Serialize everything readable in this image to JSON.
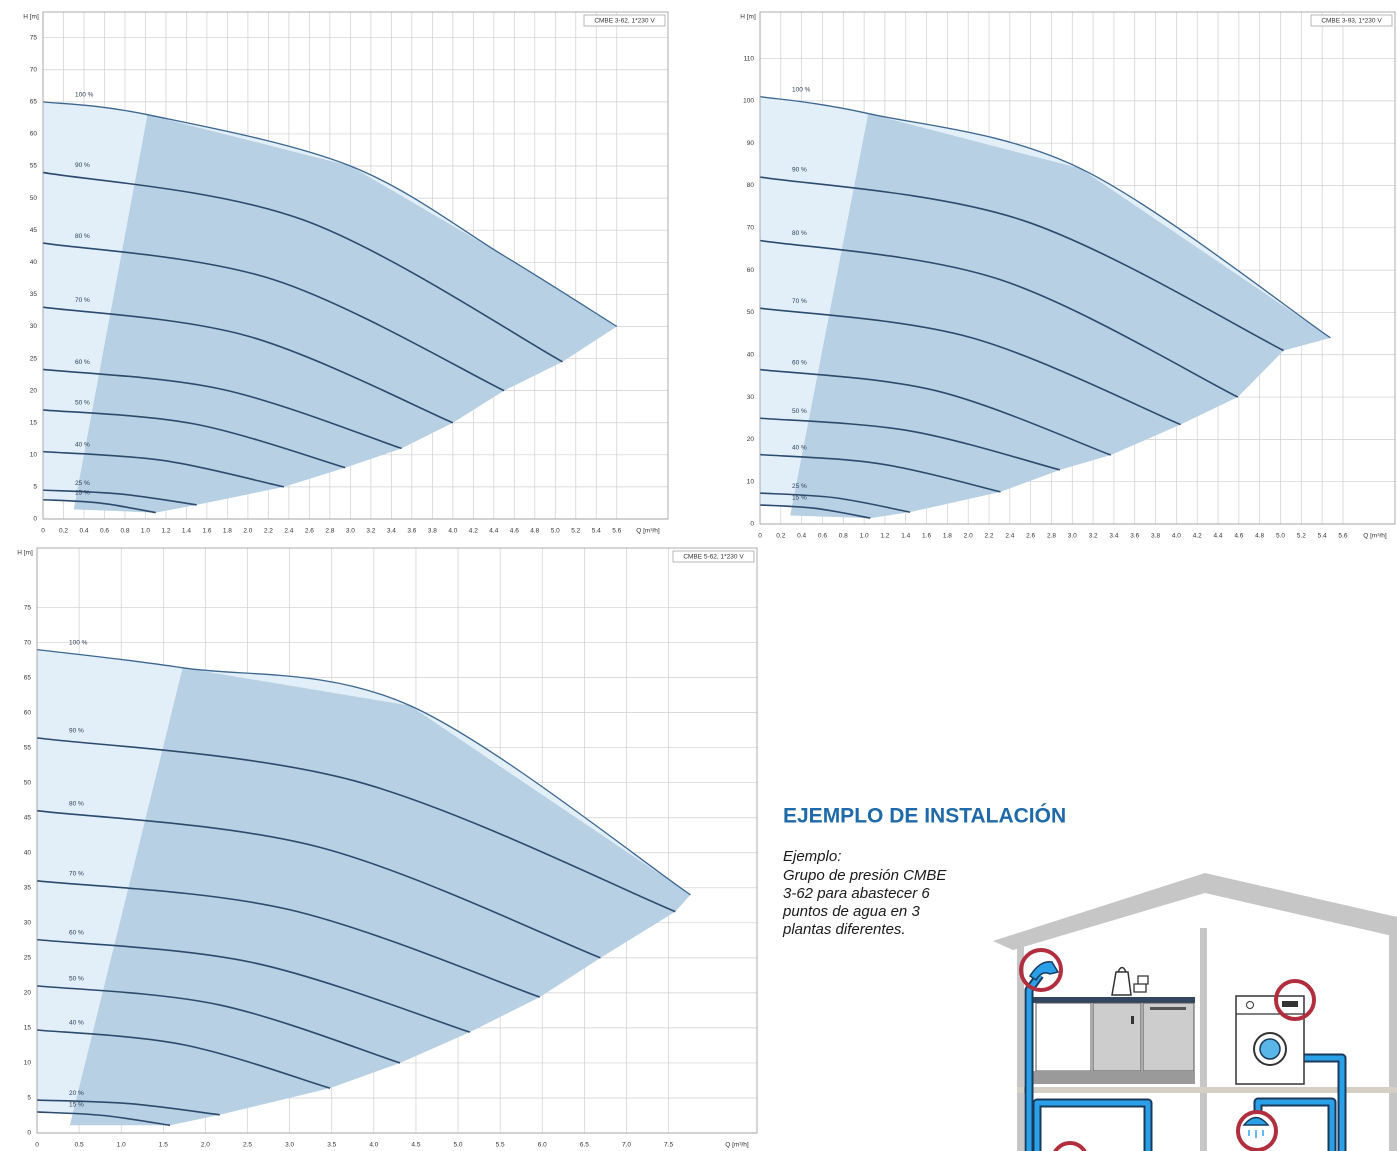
{
  "chart_data": [
    {
      "type": "line",
      "title": "CMBE 3-62, 1*230 V",
      "xlabel": "Q [m³/h]",
      "ylabel": "H [m]",
      "xlim": [
        0,
        6.1
      ],
      "ylim": [
        0,
        79
      ],
      "xticks": [
        0,
        0.2,
        0.4,
        0.6,
        0.8,
        {
          "value": 1,
          "label": "1.0"
        },
        1.2,
        1.4,
        1.6,
        1.8,
        {
          "value": 2,
          "label": "2.0"
        },
        2.2,
        2.4,
        2.6,
        2.8,
        {
          "value": 3,
          "label": "3.0"
        },
        3.2,
        3.4,
        3.6,
        3.8,
        {
          "value": 4,
          "label": "4.0"
        },
        4.2,
        4.4,
        4.6,
        4.8,
        {
          "value": 5,
          "label": "5.0"
        },
        5.2,
        5.4,
        5.6
      ],
      "yticks": [
        0,
        5,
        10,
        15,
        20,
        25,
        30,
        35,
        40,
        45,
        50,
        55,
        60,
        65,
        70,
        75
      ],
      "grid": true,
      "envelope_color": "#e2eff9",
      "operating_area": {
        "color": "#b8d0e3",
        "x": [
          0.3,
          1.02,
          3,
          4.5,
          5.6,
          5.07,
          4.5,
          4.0,
          3.5,
          2.95,
          2.35,
          1.5,
          1.1
        ],
        "values": [
          1.5,
          63,
          55,
          41,
          30,
          24.5,
          20,
          15,
          11,
          8,
          5,
          2.2,
          1
        ]
      },
      "series": [
        {
          "name": "100 %",
          "color": "#3a6690",
          "x": [
            0,
            1.02,
            3,
            4.5,
            5.6
          ],
          "values": [
            65,
            63,
            55,
            41,
            30
          ]
        },
        {
          "name": "90 %",
          "color": "#2b4a6e",
          "x": [
            0,
            2.54,
            5.07
          ],
          "values": [
            54,
            46.6,
            24.5
          ]
        },
        {
          "name": "80 %",
          "color": "#2b4a6e",
          "x": [
            0,
            2.25,
            4.5
          ],
          "values": [
            43,
            37.3,
            20
          ]
        },
        {
          "name": "70 %",
          "color": "#2b4a6e",
          "x": [
            0,
            2.0,
            4.0
          ],
          "values": [
            33,
            28.5,
            15
          ]
        },
        {
          "name": "60 %",
          "color": "#2b4a6e",
          "x": [
            0,
            1.75,
            3.5
          ],
          "values": [
            23.3,
            20.2,
            11
          ]
        },
        {
          "name": "50 %",
          "color": "#2b4a6e",
          "x": [
            0,
            1.48,
            2.95
          ],
          "values": [
            17,
            14.8,
            8
          ]
        },
        {
          "name": "40 %",
          "color": "#2b4a6e",
          "x": [
            0,
            1.18,
            2.35
          ],
          "values": [
            10.5,
            9.1,
            5
          ]
        },
        {
          "name": "25 %",
          "color": "#2b4a6e",
          "x": [
            0,
            0.75,
            1.5
          ],
          "values": [
            4.5,
            3.9,
            2.2
          ]
        },
        {
          "name": "15 %",
          "color": "#2b4a6e",
          "x": [
            0,
            0.55,
            1.1
          ],
          "values": [
            3,
            2.5,
            1
          ]
        }
      ]
    },
    {
      "type": "line",
      "title": "CMBE 3-93, 1*230 V",
      "xlabel": "Q [m³/h]",
      "ylabel": "H [m]",
      "xlim": [
        0,
        6.1
      ],
      "ylim": [
        0,
        121
      ],
      "xticks": [
        0,
        0.2,
        0.4,
        0.6,
        0.8,
        {
          "value": 1,
          "label": "1.0"
        },
        1.2,
        1.4,
        1.6,
        1.8,
        {
          "value": 2,
          "label": "2.0"
        },
        2.2,
        2.4,
        2.6,
        2.8,
        {
          "value": 3,
          "label": "3.0"
        },
        3.2,
        3.4,
        3.6,
        3.8,
        {
          "value": 4,
          "label": "4.0"
        },
        4.2,
        4.4,
        4.6,
        4.8,
        {
          "value": 5,
          "label": "5.0"
        },
        5.2,
        5.4,
        5.6
      ],
      "yticks": [
        0,
        10,
        20,
        30,
        40,
        50,
        60,
        70,
        80,
        90,
        100,
        110
      ],
      "grid": true,
      "envelope_color": "#e2eff9",
      "operating_area": {
        "color": "#b8d0e3",
        "x": [
          0.29,
          1.04,
          3.08,
          5.48,
          5.03,
          4.59,
          4.04,
          3.37,
          2.88,
          2.31,
          1.44,
          1.06
        ],
        "values": [
          2,
          97,
          84,
          44,
          41,
          30,
          23.5,
          16.3,
          12.8,
          7.6,
          2.8,
          1.4
        ]
      },
      "series": [
        {
          "name": "100 %",
          "color": "#3a6690",
          "x": [
            0,
            1.04,
            3.08,
            5.48
          ],
          "values": [
            101,
            97,
            84,
            44
          ]
        },
        {
          "name": "90 %",
          "color": "#2b4a6e",
          "x": [
            0,
            2.52,
            5.03
          ],
          "values": [
            82,
            71.8,
            41
          ]
        },
        {
          "name": "80 %",
          "color": "#2b4a6e",
          "x": [
            0,
            2.3,
            4.59
          ],
          "values": [
            67,
            57.8,
            30
          ]
        },
        {
          "name": "70 %",
          "color": "#2b4a6e",
          "x": [
            0,
            2.02,
            4.04
          ],
          "values": [
            51,
            44.1,
            23.5
          ]
        },
        {
          "name": "60 %",
          "color": "#2b4a6e",
          "x": [
            0,
            1.69,
            3.37
          ],
          "values": [
            36.5,
            31.5,
            16.3
          ]
        },
        {
          "name": "50 %",
          "color": "#2b4a6e",
          "x": [
            0,
            1.44,
            2.88
          ],
          "values": [
            25,
            22,
            12.8
          ]
        },
        {
          "name": "40 %",
          "color": "#2b4a6e",
          "x": [
            0,
            1.16,
            2.31
          ],
          "values": [
            16.4,
            14.2,
            7.6
          ]
        },
        {
          "name": "25 %",
          "color": "#2b4a6e",
          "x": [
            0,
            0.72,
            1.44
          ],
          "values": [
            7.3,
            6.2,
            2.8
          ]
        },
        {
          "name": "15 %",
          "color": "#2b4a6e",
          "x": [
            0,
            0.53,
            1.06
          ],
          "values": [
            4.5,
            3.7,
            1.4
          ]
        }
      ]
    },
    {
      "type": "line",
      "title": "CMBE 5-62, 1*230 V",
      "xlabel": "Q [m³/h]",
      "ylabel": "H [m]",
      "xlim": [
        0,
        8.55
      ],
      "ylim": [
        0,
        83.5
      ],
      "xticks": [
        0,
        0.5,
        {
          "value": 1,
          "label": "1.0"
        },
        1.5,
        {
          "value": 2,
          "label": "2.0"
        },
        2.5,
        {
          "value": 3,
          "label": "3.0"
        },
        3.5,
        {
          "value": 4,
          "label": "4.0"
        },
        4.5,
        {
          "value": 5,
          "label": "5.0"
        },
        5.5,
        {
          "value": 6,
          "label": "6.0"
        },
        6.5,
        {
          "value": 7,
          "label": "7.0"
        },
        7.5
      ],
      "yticks": [
        0,
        5,
        10,
        15,
        20,
        25,
        30,
        35,
        40,
        45,
        50,
        55,
        60,
        65,
        70,
        75
      ],
      "grid": true,
      "envelope_color": "#e2eff9",
      "operating_area": {
        "color": "#b8d0e3",
        "x": [
          0.39,
          1.73,
          4.43,
          7.76,
          7.58,
          6.69,
          5.97,
          5.14,
          4.31,
          3.48,
          2.17,
          1.58
        ],
        "values": [
          1.1,
          66.4,
          61,
          34,
          31.6,
          25,
          19.4,
          14.4,
          10,
          6.4,
          2.6,
          1.1
        ]
      },
      "series": [
        {
          "name": "100 %",
          "color": "#3a6690",
          "x": [
            0,
            1.73,
            4.43,
            7.76
          ],
          "values": [
            69,
            66.4,
            61,
            34
          ]
        },
        {
          "name": "90 %",
          "color": "#2b4a6e",
          "x": [
            0,
            3.79,
            7.58
          ],
          "values": [
            56.4,
            50.2,
            31.6
          ]
        },
        {
          "name": "80 %",
          "color": "#2b4a6e",
          "x": [
            0,
            3.35,
            6.69
          ],
          "values": [
            46,
            40.8,
            25
          ]
        },
        {
          "name": "70 %",
          "color": "#2b4a6e",
          "x": [
            0,
            2.99,
            5.97
          ],
          "values": [
            36,
            31.9,
            19.4
          ]
        },
        {
          "name": "60 %",
          "color": "#2b4a6e",
          "x": [
            0,
            2.57,
            5.14
          ],
          "values": [
            27.6,
            24.3,
            14.4
          ]
        },
        {
          "name": "50 %",
          "color": "#2b4a6e",
          "x": [
            0,
            2.16,
            4.31
          ],
          "values": [
            21,
            18.3,
            10
          ]
        },
        {
          "name": "40 %",
          "color": "#2b4a6e",
          "x": [
            0,
            1.74,
            3.48
          ],
          "values": [
            14.7,
            12.6,
            6.4
          ]
        },
        {
          "name": "20 %",
          "color": "#2b4a6e",
          "x": [
            0,
            1.09,
            2.17
          ],
          "values": [
            4.7,
            4.2,
            2.6
          ]
        },
        {
          "name": "15 %",
          "color": "#2b4a6e",
          "x": [
            0,
            0.79,
            1.58
          ],
          "values": [
            3,
            2.5,
            1.1
          ]
        }
      ]
    }
  ],
  "example": {
    "heading": "EJEMPLO DE INSTALACIÓN",
    "lines": [
      "Ejemplo:",
      "Grupo de presión CMBE",
      "3-62 para abastecer 6",
      "puntos de agua en 3",
      "plantas diferentes."
    ]
  }
}
